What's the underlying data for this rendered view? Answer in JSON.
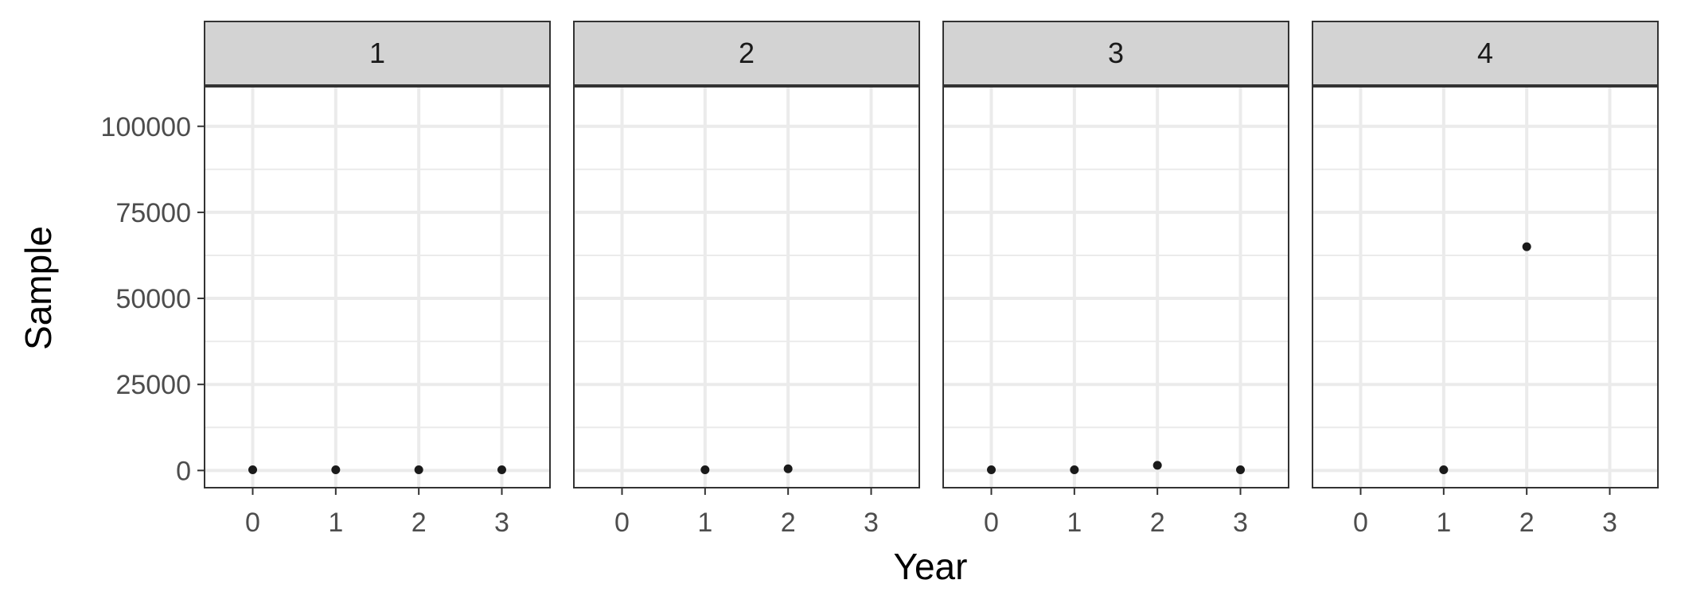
{
  "chart_data": {
    "type": "scatter",
    "xlabel": "Year",
    "ylabel": "Sample",
    "x_ticks": [
      "0",
      "1",
      "2",
      "3"
    ],
    "y_ticks": [
      "0",
      "25000",
      "50000",
      "75000",
      "100000"
    ],
    "xlim": [
      -0.58,
      3.58
    ],
    "ylim": [
      -5000,
      111500
    ],
    "grid": true,
    "point_color": "#1a1a1a",
    "strip_fill": "#d3d3d3",
    "grid_color": "#ebebeb",
    "facets": [
      {
        "label": "1",
        "points": [
          {
            "x": 0,
            "y": 200
          },
          {
            "x": 1,
            "y": 200
          },
          {
            "x": 2,
            "y": 200
          },
          {
            "x": 3,
            "y": 200
          }
        ]
      },
      {
        "label": "2",
        "points": [
          {
            "x": 1,
            "y": 200
          },
          {
            "x": 2,
            "y": 500
          }
        ]
      },
      {
        "label": "3",
        "points": [
          {
            "x": 0,
            "y": 200
          },
          {
            "x": 1,
            "y": 200
          },
          {
            "x": 2,
            "y": 1500
          },
          {
            "x": 3,
            "y": 200
          }
        ]
      },
      {
        "label": "4",
        "points": [
          {
            "x": 1,
            "y": 200
          },
          {
            "x": 2,
            "y": 65000
          }
        ]
      }
    ]
  }
}
